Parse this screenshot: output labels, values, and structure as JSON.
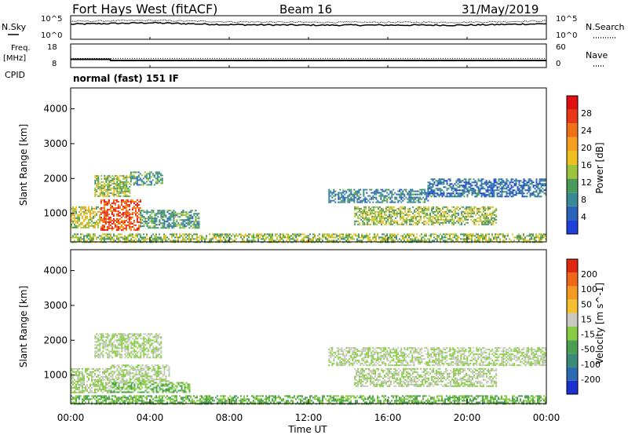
{
  "header": {
    "station": "Fort Hays West (fitACF)",
    "beam": "Beam 16",
    "date": "31/May/2019"
  },
  "noise_panel": {
    "left_label": "N.Sky",
    "right_label": "N.Search",
    "left_ticks": [
      "10^5",
      "10^0"
    ],
    "right_ticks": [
      "10^5",
      "10^0"
    ]
  },
  "freq_panel": {
    "left_label_1": "Freq.",
    "left_label_2": "[MHz]",
    "right_label": "Nave",
    "left_ticks": [
      "18",
      "8"
    ],
    "right_ticks": [
      "60",
      "0"
    ],
    "cpid_label": "CPID",
    "cpid_text": "normal (fast) 151 IF",
    "freq_value_mhz": 11,
    "nave_value": 23
  },
  "axes": {
    "xlabel": "Time UT",
    "ylabel": "Slant Range [km]",
    "x_ticks": [
      "00:00",
      "04:00",
      "08:00",
      "12:00",
      "16:00",
      "20:00",
      "00:00"
    ],
    "y_ticks": [
      "1000",
      "2000",
      "3000",
      "4000"
    ],
    "x_range_hours": [
      0,
      24
    ],
    "y_range_km": [
      180,
      4600
    ]
  },
  "colorbars": {
    "power": {
      "label": "Power [dB]",
      "ticks": [
        "4",
        "8",
        "12",
        "16",
        "20",
        "24",
        "28"
      ],
      "colors": [
        "#1f3fd8",
        "#2a63b8",
        "#3a8a96",
        "#4a9a5a",
        "#9cc43c",
        "#f0c020",
        "#f5a020",
        "#f07018",
        "#e83818",
        "#e01010"
      ]
    },
    "velocity": {
      "label": "Velocity [m s^-1]",
      "ticks": [
        "200",
        "100",
        "50",
        "15",
        "-15",
        "-50",
        "-100",
        "-200"
      ],
      "colors": [
        "#1a30d0",
        "#2e6ab0",
        "#3a8a7a",
        "#4aa050",
        "#88cc44",
        "#c8c8c0",
        "#f5c030",
        "#f59a20",
        "#f06818",
        "#e02810"
      ]
    }
  },
  "chart_data": [
    {
      "type": "line",
      "title": "N.Sky / N.Search",
      "x": [
        0,
        4,
        8,
        12,
        16,
        20,
        24
      ],
      "series": [
        {
          "name": "N.Sky",
          "values": [
            3.2,
            3.5,
            3.1,
            3.0,
            3.0,
            3.0,
            3.3
          ]
        },
        {
          "name": "N.Search",
          "values": [
            3.8,
            4.0,
            3.7,
            3.6,
            3.6,
            3.6,
            3.9
          ]
        }
      ],
      "ylim": [
        0,
        5
      ]
    },
    {
      "type": "line",
      "title": "Freq. / Nave",
      "x": [
        0,
        2,
        2.01,
        14,
        14.01,
        24
      ],
      "series": [
        {
          "name": "Freq.",
          "values": [
            11.5,
            11.5,
            11.0,
            11.0,
            11.0,
            11.0
          ]
        }
      ],
      "ylim": [
        8,
        18
      ]
    },
    {
      "type": "heatmap",
      "title": "Power [dB]",
      "xlabel": "Time UT",
      "ylabel": "Slant Range [km]",
      "regions": [
        {
          "t0": 0.0,
          "t1": 1.5,
          "r0": 600,
          "r1": 1200,
          "value": 16
        },
        {
          "t0": 1.5,
          "t1": 3.5,
          "r0": 500,
          "r1": 1400,
          "value": 26
        },
        {
          "t0": 3.5,
          "t1": 6.5,
          "r0": 600,
          "r1": 1100,
          "value": 10
        },
        {
          "t0": 1.2,
          "t1": 3.0,
          "r0": 1500,
          "r1": 2100,
          "value": 14
        },
        {
          "t0": 3.0,
          "t1": 4.6,
          "r0": 1800,
          "r1": 2200,
          "value": 10
        },
        {
          "t0": 0.0,
          "t1": 24.0,
          "r0": 180,
          "r1": 420,
          "value": 14
        },
        {
          "t0": 13.0,
          "t1": 18.0,
          "r0": 1300,
          "r1": 1700,
          "value": 8
        },
        {
          "t0": 14.3,
          "t1": 21.5,
          "r0": 700,
          "r1": 1200,
          "value": 14
        },
        {
          "t0": 18.0,
          "t1": 24.0,
          "r0": 1500,
          "r1": 2000,
          "value": 6
        }
      ],
      "zlim": [
        0,
        32
      ]
    },
    {
      "type": "heatmap",
      "title": "Velocity [m s^-1]",
      "xlabel": "Time UT",
      "ylabel": "Slant Range [km]",
      "regions": [
        {
          "t0": 0.0,
          "t1": 2.0,
          "r0": 500,
          "r1": 1200,
          "value": 0
        },
        {
          "t0": 2.0,
          "t1": 6.0,
          "r0": 500,
          "r1": 800,
          "value": -40
        },
        {
          "t0": 2.0,
          "t1": 5.0,
          "r0": 800,
          "r1": 1300,
          "value": 0
        },
        {
          "t0": 0.0,
          "t1": 24.0,
          "r0": 180,
          "r1": 420,
          "value": -40
        },
        {
          "t0": 13.0,
          "t1": 24.0,
          "r0": 1300,
          "r1": 1800,
          "value": 0
        },
        {
          "t0": 14.3,
          "t1": 21.5,
          "r0": 700,
          "r1": 1200,
          "value": 0
        },
        {
          "t0": 1.2,
          "t1": 4.6,
          "r0": 1500,
          "r1": 2200,
          "value": 0
        }
      ],
      "zlim": [
        -200,
        200
      ]
    }
  ]
}
